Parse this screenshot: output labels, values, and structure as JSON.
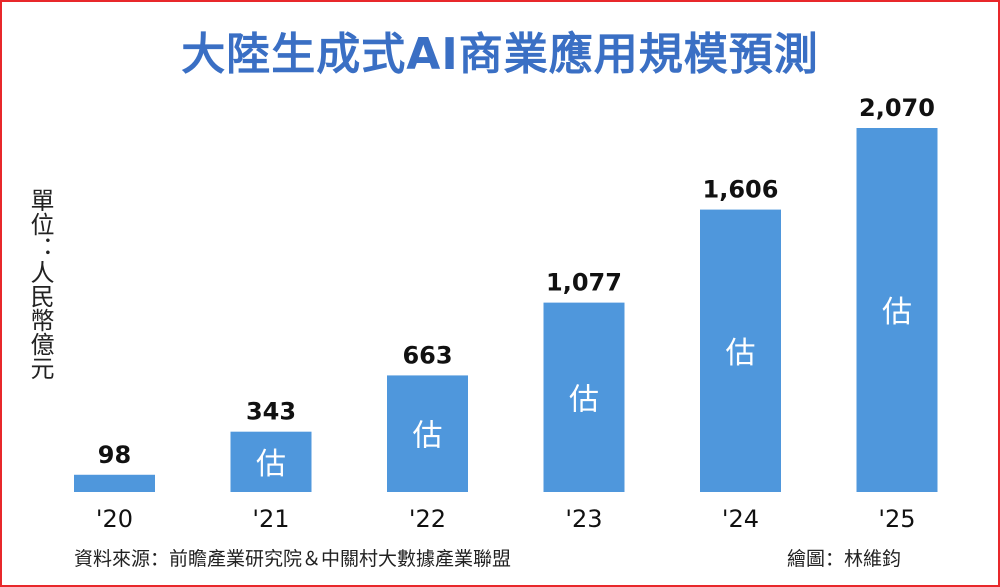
{
  "title": "大陸生成式AI商業應用規模預測",
  "unit_label": "單位：人民幣億元",
  "source": "資料來源：前瞻產業研究院＆中關村大數據產業聯盟",
  "credit": "繪圖：林維鈞",
  "colors": {
    "bar": "#4f97dc",
    "title": "#3a6fc4",
    "frame": "#e8282b"
  },
  "chart_data": {
    "type": "bar",
    "title": "大陸生成式AI商業應用規模預測",
    "ylabel": "單位：人民幣億元",
    "categories": [
      "'20",
      "'21",
      "'22",
      "'23",
      "'24",
      "'25"
    ],
    "values": [
      98,
      343,
      663,
      1077,
      1606,
      2070
    ],
    "value_labels": [
      "98",
      "343",
      "663",
      "1,077",
      "1,606",
      "2,070"
    ],
    "estimate_marks": [
      "",
      "估",
      "估",
      "估",
      "估",
      "估"
    ],
    "ylim": [
      0,
      2070
    ],
    "grid": false,
    "legend": "none"
  }
}
